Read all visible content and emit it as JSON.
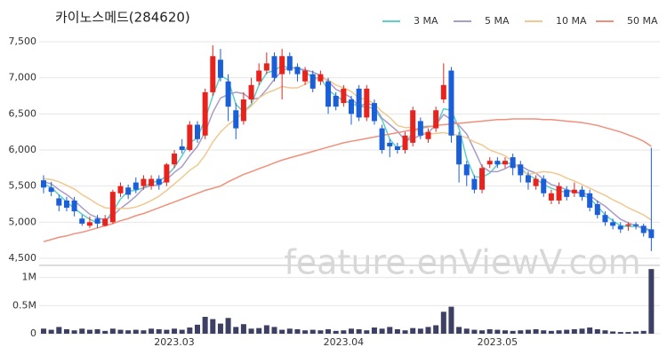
{
  "chart_data": {
    "type": "candlestick",
    "title": "카이노스메드(284620)",
    "watermark": "feature.enViewV.com",
    "categories": [
      null,
      null,
      null,
      null,
      null,
      null,
      null,
      null,
      null,
      null,
      null,
      null,
      null,
      null,
      null,
      null,
      null,
      "2023.03",
      null,
      null,
      null,
      null,
      null,
      null,
      null,
      null,
      null,
      null,
      null,
      null,
      null,
      null,
      null,
      null,
      null,
      null,
      null,
      null,
      null,
      "2023.04",
      null,
      null,
      null,
      null,
      null,
      null,
      null,
      null,
      null,
      null,
      null,
      null,
      null,
      null,
      null,
      null,
      null,
      null,
      null,
      "2023.05",
      null,
      null,
      null,
      null,
      null,
      null,
      null,
      null,
      null,
      null,
      null,
      null,
      null,
      null,
      null,
      null,
      null,
      null,
      null,
      null
    ],
    "open": [
      5580,
      5480,
      5330,
      5300,
      5300,
      5050,
      4950,
      5050,
      4950,
      5000,
      5400,
      5480,
      5550,
      5500,
      5500,
      5600,
      5550,
      5800,
      6050,
      6000,
      6350,
      6200,
      6800,
      7250,
      6950,
      6550,
      6400,
      6700,
      6950,
      7100,
      7300,
      7050,
      7300,
      7150,
      6950,
      7050,
      6950,
      6950,
      6750,
      6650,
      6700,
      6850,
      6450,
      6650,
      6300,
      6100,
      6050,
      6000,
      6100,
      6400,
      6150,
      6300,
      6700,
      7100,
      6200,
      5800,
      5600,
      5450,
      5800,
      5850,
      5800,
      5900,
      5800,
      5650,
      5500,
      5600,
      5300,
      5300,
      5450,
      5400,
      5450,
      5400,
      5250,
      5100,
      5000,
      4950,
      4950,
      4970,
      4950,
      4900
    ],
    "high": [
      5650,
      5560,
      5380,
      5350,
      5350,
      5100,
      5080,
      5100,
      5100,
      5450,
      5550,
      5520,
      5620,
      5650,
      5650,
      5650,
      5820,
      6000,
      6150,
      6400,
      6400,
      6850,
      7450,
      7400,
      7050,
      6650,
      6800,
      7000,
      7200,
      7350,
      7350,
      7400,
      7350,
      7200,
      7150,
      7100,
      7100,
      7000,
      6800,
      6900,
      6750,
      6900,
      6900,
      6700,
      6350,
      6150,
      6100,
      6250,
      6600,
      6450,
      6300,
      6600,
      7200,
      7150,
      6250,
      5850,
      5650,
      5800,
      5900,
      5900,
      5900,
      5950,
      5850,
      5700,
      5650,
      5650,
      5450,
      5550,
      5500,
      5550,
      5500,
      5450,
      5300,
      5150,
      5050,
      5000,
      5000,
      5000,
      4980,
      6030
    ],
    "low": [
      5400,
      5360,
      5150,
      5150,
      5080,
      4950,
      4920,
      4920,
      4940,
      4980,
      5350,
      5320,
      5400,
      5450,
      5450,
      5450,
      5500,
      5750,
      5950,
      5980,
      6100,
      6150,
      6750,
      6950,
      6400,
      6150,
      6350,
      6650,
      6900,
      7050,
      6950,
      6700,
      7050,
      6950,
      6900,
      6800,
      6900,
      6500,
      6550,
      6600,
      6350,
      6400,
      6400,
      6350,
      5950,
      5900,
      5950,
      5950,
      6050,
      6150,
      6100,
      6250,
      6650,
      6100,
      5550,
      5500,
      5400,
      5400,
      5750,
      5750,
      5750,
      5650,
      5550,
      5450,
      5450,
      5350,
      5250,
      5250,
      5300,
      5350,
      5300,
      5150,
      5050,
      4950,
      4900,
      4850,
      4880,
      4900,
      4800,
      4600
    ],
    "close": [
      5480,
      5420,
      5230,
      5200,
      5150,
      4980,
      5000,
      4980,
      5050,
      5420,
      5500,
      5380,
      5450,
      5600,
      5600,
      5520,
      5800,
      5950,
      6000,
      6350,
      6150,
      6800,
      7300,
      7000,
      6600,
      6300,
      6700,
      6900,
      7100,
      7200,
      7000,
      7300,
      7100,
      7050,
      7100,
      6850,
      7050,
      6600,
      6600,
      6850,
      6500,
      6450,
      6850,
      6400,
      6000,
      6050,
      6000,
      6200,
      6550,
      6200,
      6250,
      6550,
      6900,
      6200,
      5800,
      5650,
      5450,
      5750,
      5850,
      5800,
      5850,
      5750,
      5650,
      5550,
      5600,
      5400,
      5400,
      5500,
      5350,
      5450,
      5350,
      5200,
      5100,
      5000,
      4950,
      4900,
      4970,
      4950,
      4850,
      4780
    ],
    "up_color": "#e8231e",
    "down_color": "#1a5ed8",
    "series": [
      {
        "name": "3 MA",
        "color": "#5ccfc6",
        "values": [
          5530,
          5480,
          5380,
          5280,
          5190,
          5110,
          5040,
          4990,
          5010,
          5150,
          5320,
          5430,
          5440,
          5480,
          5550,
          5570,
          5640,
          5760,
          5920,
          6100,
          6170,
          6430,
          6750,
          7030,
          6970,
          6630,
          6530,
          6630,
          6900,
          7070,
          7100,
          7170,
          7130,
          7150,
          7080,
          7000,
          7000,
          6830,
          6750,
          6680,
          6650,
          6600,
          6600,
          6570,
          6420,
          6150,
          6020,
          6080,
          6250,
          6320,
          6330,
          6330,
          6570,
          6550,
          6300,
          5880,
          5630,
          5620,
          5680,
          5800,
          5830,
          5800,
          5750,
          5650,
          5600,
          5520,
          5470,
          5430,
          5420,
          5430,
          5380,
          5330,
          5220,
          5100,
          5020,
          4950,
          4940,
          4940,
          4920,
          4860
        ]
      },
      {
        "name": "5 MA",
        "color": "#a89cc8",
        "values": [
          5560,
          5530,
          5450,
          5380,
          5300,
          5200,
          5110,
          5060,
          5030,
          5090,
          5190,
          5270,
          5360,
          5470,
          5510,
          5510,
          5590,
          5690,
          5770,
          5920,
          6050,
          6250,
          6520,
          6720,
          6770,
          6800,
          6780,
          6700,
          6720,
          6840,
          6980,
          7100,
          7140,
          7130,
          7110,
          7080,
          7030,
          6950,
          6840,
          6790,
          6720,
          6600,
          6650,
          6610,
          6440,
          6350,
          6260,
          6130,
          6160,
          6200,
          6240,
          6350,
          6490,
          6420,
          6340,
          6220,
          6000,
          5770,
          5700,
          5700,
          5740,
          5800,
          5780,
          5720,
          5680,
          5590,
          5520,
          5490,
          5450,
          5420,
          5410,
          5370,
          5290,
          5220,
          5130,
          5040,
          4990,
          4950,
          4920,
          4890
        ]
      },
      {
        "name": "10 MA",
        "color": "#f0c890",
        "values": [
          5600,
          5590,
          5560,
          5510,
          5460,
          5380,
          5320,
          5250,
          5200,
          5190,
          5190,
          5190,
          5210,
          5250,
          5300,
          5360,
          5440,
          5530,
          5620,
          5720,
          5790,
          5930,
          6110,
          6250,
          6350,
          6430,
          6520,
          6610,
          6720,
          6790,
          6830,
          6880,
          6860,
          6860,
          6910,
          6970,
          7000,
          6970,
          6900,
          6860,
          6810,
          6720,
          6700,
          6640,
          6530,
          6450,
          6340,
          6310,
          6310,
          6250,
          6220,
          6230,
          6240,
          6220,
          6200,
          6170,
          6110,
          6070,
          6000,
          5960,
          5920,
          5840,
          5720,
          5660,
          5680,
          5700,
          5690,
          5660,
          5610,
          5570,
          5520,
          5470,
          5420,
          5370,
          5310,
          5260,
          5200,
          5150,
          5100,
          5030
        ]
      },
      {
        "name": "50 MA",
        "color": "#f0907a",
        "values": [
          4730,
          4760,
          4790,
          4810,
          4840,
          4860,
          4890,
          4920,
          4950,
          4980,
          5020,
          5050,
          5090,
          5120,
          5160,
          5200,
          5240,
          5280,
          5320,
          5360,
          5400,
          5440,
          5470,
          5500,
          5560,
          5610,
          5660,
          5700,
          5740,
          5780,
          5820,
          5860,
          5890,
          5920,
          5950,
          5980,
          6010,
          6040,
          6070,
          6100,
          6120,
          6140,
          6160,
          6180,
          6200,
          6220,
          6240,
          6260,
          6280,
          6300,
          6320,
          6340,
          6350,
          6360,
          6370,
          6380,
          6390,
          6400,
          6410,
          6420,
          6420,
          6430,
          6430,
          6430,
          6430,
          6420,
          6420,
          6410,
          6400,
          6390,
          6380,
          6360,
          6340,
          6310,
          6280,
          6250,
          6210,
          6170,
          6120,
          6050
        ]
      }
    ],
    "ylim": [
      4414,
      7635
    ],
    "yticks": [
      {
        "value": 4500,
        "label": "4,500"
      },
      {
        "value": 5000,
        "label": "5,000"
      },
      {
        "value": 5500,
        "label": "5,500"
      },
      {
        "value": 6000,
        "label": "6,000"
      },
      {
        "value": 6500,
        "label": "6,500"
      },
      {
        "value": 7000,
        "label": "7,000"
      },
      {
        "value": 7500,
        "label": "7,500"
      }
    ],
    "volume": {
      "color": "#3d3f63",
      "ylim": [
        0,
        1200000
      ],
      "yticks": [
        0,
        {
          "value": 500000,
          "label": "0.5M"
        },
        {
          "value": 1000000,
          "label": "1M"
        }
      ],
      "values": [
        90000,
        70000,
        120000,
        80000,
        60000,
        90000,
        70000,
        80000,
        50000,
        90000,
        70000,
        60000,
        70000,
        60000,
        90000,
        80000,
        70000,
        90000,
        70000,
        110000,
        160000,
        300000,
        260000,
        180000,
        280000,
        120000,
        170000,
        90000,
        100000,
        150000,
        120000,
        70000,
        90000,
        80000,
        60000,
        70000,
        60000,
        80000,
        50000,
        60000,
        90000,
        80000,
        60000,
        110000,
        90000,
        120000,
        80000,
        60000,
        100000,
        90000,
        120000,
        150000,
        390000,
        480000,
        120000,
        90000,
        70000,
        60000,
        80000,
        70000,
        60000,
        50000,
        60000,
        70000,
        80000,
        60000,
        50000,
        60000,
        70000,
        80000,
        90000,
        110000,
        80000,
        60000,
        40000,
        30000,
        30000,
        40000,
        50000,
        1150000
      ]
    },
    "grid": true
  }
}
